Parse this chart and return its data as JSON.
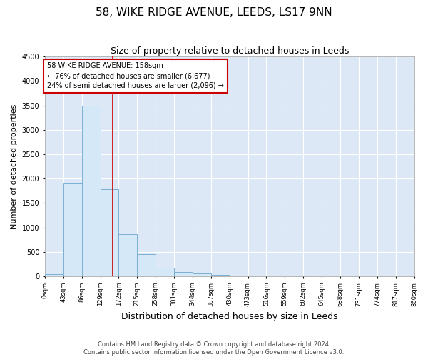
{
  "title": "58, WIKE RIDGE AVENUE, LEEDS, LS17 9NN",
  "subtitle": "Size of property relative to detached houses in Leeds",
  "xlabel": "Distribution of detached houses by size in Leeds",
  "ylabel": "Number of detached properties",
  "bar_edges": [
    0,
    43,
    86,
    129,
    172,
    215,
    258,
    301,
    344,
    387,
    430,
    473,
    516,
    559,
    602,
    645,
    688,
    731,
    774,
    817,
    860
  ],
  "bar_heights": [
    50,
    1900,
    3500,
    1780,
    860,
    460,
    175,
    90,
    55,
    30,
    0,
    0,
    0,
    0,
    0,
    0,
    0,
    0,
    0,
    0
  ],
  "bar_color": "#d4e8f8",
  "bar_edge_color": "#7ab0d4",
  "property_size": 158,
  "vline_color": "#cc0000",
  "annotation_line1": "58 WIKE RIDGE AVENUE: 158sqm",
  "annotation_line2": "← 76% of detached houses are smaller (6,677)",
  "annotation_line3": "24% of semi-detached houses are larger (2,096) →",
  "annotation_box_color": "#ffffff",
  "annotation_box_edge_color": "#cc0000",
  "ylim": [
    0,
    4500
  ],
  "yticks": [
    0,
    500,
    1000,
    1500,
    2000,
    2500,
    3000,
    3500,
    4000,
    4500
  ],
  "tick_labels": [
    "0sqm",
    "43sqm",
    "86sqm",
    "129sqm",
    "172sqm",
    "215sqm",
    "258sqm",
    "301sqm",
    "344sqm",
    "387sqm",
    "430sqm",
    "473sqm",
    "516sqm",
    "559sqm",
    "602sqm",
    "645sqm",
    "688sqm",
    "731sqm",
    "774sqm",
    "817sqm",
    "860sqm"
  ],
  "footer_line1": "Contains HM Land Registry data © Crown copyright and database right 2024.",
  "footer_line2": "Contains public sector information licensed under the Open Government Licence v3.0.",
  "fig_bg_color": "#ffffff",
  "plot_bg_color": "#dce8f5",
  "grid_color": "#ffffff",
  "title_fontsize": 11,
  "subtitle_fontsize": 9,
  "ylabel_fontsize": 8,
  "xlabel_fontsize": 9,
  "tick_fontsize": 6,
  "footer_fontsize": 6
}
